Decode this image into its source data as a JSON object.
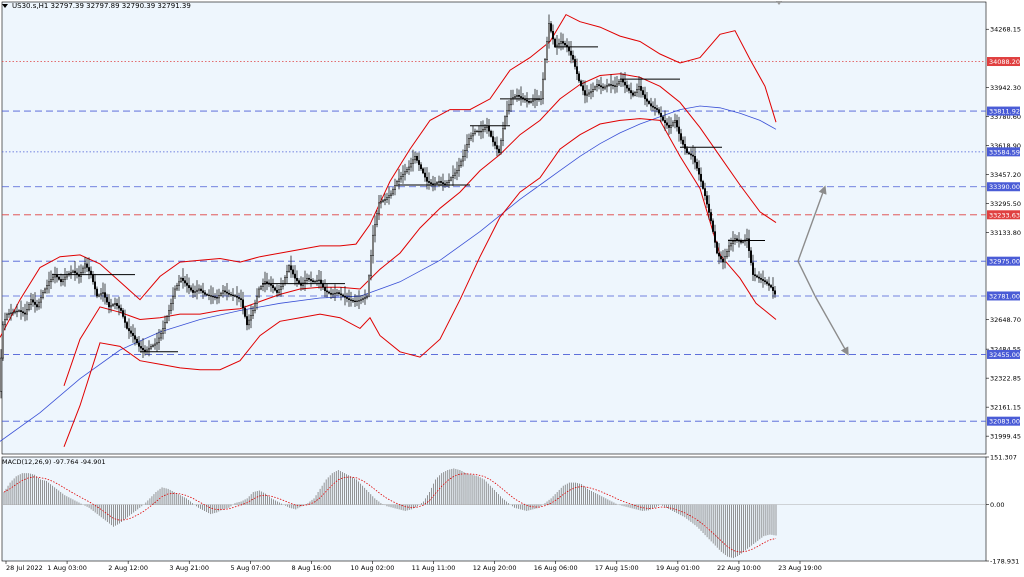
{
  "header": {
    "symbol_line": "US30.s,H1  32797.39 32797.89 32790.39 32791.39"
  },
  "macd": {
    "label": "MACD(12,26,9) -97.764 -94.901",
    "ylim": [
      -178.931,
      151.307
    ],
    "ticks": [
      "151.307",
      "0.00",
      "-178.931"
    ]
  },
  "colors": {
    "background": "#ffffff",
    "plot_bg": "#eef6fd",
    "bollinger": "#e00000",
    "ma_long": "#3a50d6",
    "blue_levels": "#4a5cd6",
    "red_levels": "#e04040",
    "candles": "#000000",
    "arrows": "#8c8c8c",
    "macd_hist": "#7a7a7a",
    "macd_signal": "#e00000"
  },
  "chart_data": {
    "type": "line",
    "title": "",
    "instrument": "US30.s",
    "timeframe": "H1",
    "ylim": [
      31900,
      34420
    ],
    "price_ticks": [
      "34268.15",
      "33942.30",
      "33780.60",
      "33618.90",
      "33457.20",
      "33295.50",
      "33133.80",
      "32648.70",
      "32484.55",
      "32322.85",
      "32161.15",
      "31999.45"
    ],
    "x_ticks": [
      "28 Jul 2022",
      "1 Aug 03:00",
      "2 Aug 12:00",
      "3 Aug 21:00",
      "5 Aug 07:00",
      "8 Aug 16:00",
      "10 Aug 02:00",
      "11 Aug 11:00",
      "12 Aug 20:00",
      "16 Aug 06:00",
      "17 Aug 15:00",
      "19 Aug 01:00",
      "22 Aug 10:00",
      "23 Aug 19:00"
    ],
    "levels": [
      {
        "value": 34088.2,
        "label": "34088.20",
        "color": "red",
        "style": "dotted"
      },
      {
        "value": 33811.92,
        "label": "33811.92",
        "color": "blue",
        "style": "dashed"
      },
      {
        "value": 33584.59,
        "label": "33584.59",
        "color": "blue",
        "style": "dotted"
      },
      {
        "value": 33390.0,
        "label": "33390.00",
        "color": "blue",
        "style": "dashed"
      },
      {
        "value": 33233.63,
        "label": "33233.63",
        "color": "red",
        "style": "dashed"
      },
      {
        "value": 32975.0,
        "label": "32975.00",
        "color": "blue",
        "style": "dashed"
      },
      {
        "value": 32781.0,
        "label": "32781.00",
        "color": "blue",
        "style": "dashed"
      },
      {
        "value": 32455.0,
        "label": "32455.00",
        "color": "blue",
        "style": "dashed"
      },
      {
        "value": 32083.0,
        "label": "32083.00",
        "color": "blue",
        "style": "dashed"
      }
    ],
    "price_path": [
      [
        0,
        32250
      ],
      [
        4,
        32620
      ],
      [
        8,
        32680
      ],
      [
        14,
        32690
      ],
      [
        20,
        32700
      ],
      [
        26,
        32680
      ],
      [
        32,
        32760
      ],
      [
        38,
        32720
      ],
      [
        44,
        32800
      ],
      [
        50,
        32860
      ],
      [
        56,
        32900
      ],
      [
        62,
        32860
      ],
      [
        68,
        32900
      ],
      [
        74,
        32920
      ],
      [
        80,
        32890
      ],
      [
        86,
        32960
      ],
      [
        92,
        32900
      ],
      [
        98,
        32780
      ],
      [
        104,
        32800
      ],
      [
        110,
        32720
      ],
      [
        116,
        32740
      ],
      [
        122,
        32700
      ],
      [
        128,
        32600
      ],
      [
        134,
        32560
      ],
      [
        140,
        32500
      ],
      [
        146,
        32470
      ],
      [
        152,
        32500
      ],
      [
        158,
        32520
      ],
      [
        164,
        32600
      ],
      [
        170,
        32700
      ],
      [
        176,
        32820
      ],
      [
        182,
        32880
      ],
      [
        188,
        32840
      ],
      [
        194,
        32800
      ],
      [
        200,
        32820
      ],
      [
        206,
        32790
      ],
      [
        212,
        32780
      ],
      [
        218,
        32770
      ],
      [
        224,
        32810
      ],
      [
        230,
        32790
      ],
      [
        236,
        32780
      ],
      [
        242,
        32760
      ],
      [
        248,
        32620
      ],
      [
        254,
        32700
      ],
      [
        260,
        32820
      ],
      [
        266,
        32860
      ],
      [
        272,
        32840
      ],
      [
        278,
        32800
      ],
      [
        284,
        32850
      ],
      [
        290,
        32950
      ],
      [
        296,
        32880
      ],
      [
        302,
        32840
      ],
      [
        308,
        32880
      ],
      [
        314,
        32860
      ],
      [
        320,
        32870
      ],
      [
        326,
        32810
      ],
      [
        332,
        32790
      ],
      [
        338,
        32800
      ],
      [
        344,
        32780
      ],
      [
        350,
        32760
      ],
      [
        356,
        32750
      ],
      [
        362,
        32760
      ],
      [
        368,
        32780
      ],
      [
        374,
        33120
      ],
      [
        380,
        33300
      ],
      [
        386,
        33320
      ],
      [
        392,
        33350
      ],
      [
        398,
        33420
      ],
      [
        404,
        33460
      ],
      [
        410,
        33500
      ],
      [
        416,
        33560
      ],
      [
        422,
        33490
      ],
      [
        428,
        33420
      ],
      [
        434,
        33400
      ],
      [
        440,
        33420
      ],
      [
        446,
        33400
      ],
      [
        452,
        33440
      ],
      [
        458,
        33480
      ],
      [
        464,
        33560
      ],
      [
        470,
        33660
      ],
      [
        476,
        33700
      ],
      [
        482,
        33700
      ],
      [
        488,
        33730
      ],
      [
        494,
        33640
      ],
      [
        500,
        33580
      ],
      [
        506,
        33780
      ],
      [
        512,
        33880
      ],
      [
        518,
        33900
      ],
      [
        524,
        33880
      ],
      [
        530,
        33860
      ],
      [
        536,
        33880
      ],
      [
        542,
        33880
      ],
      [
        546,
        34100
      ],
      [
        550,
        34300
      ],
      [
        556,
        34170
      ],
      [
        562,
        34200
      ],
      [
        568,
        34170
      ],
      [
        574,
        34100
      ],
      [
        580,
        33980
      ],
      [
        586,
        33900
      ],
      [
        592,
        33920
      ],
      [
        598,
        33960
      ],
      [
        604,
        33940
      ],
      [
        610,
        33960
      ],
      [
        616,
        33950
      ],
      [
        622,
        33990
      ],
      [
        628,
        33940
      ],
      [
        634,
        33900
      ],
      [
        640,
        33950
      ],
      [
        646,
        33880
      ],
      [
        652,
        33840
      ],
      [
        658,
        33820
      ],
      [
        664,
        33760
      ],
      [
        670,
        33720
      ],
      [
        676,
        33760
      ],
      [
        682,
        33650
      ],
      [
        688,
        33580
      ],
      [
        694,
        33560
      ],
      [
        700,
        33460
      ],
      [
        706,
        33340
      ],
      [
        712,
        33200
      ],
      [
        718,
        33020
      ],
      [
        724,
        32970
      ],
      [
        730,
        33060
      ],
      [
        736,
        33100
      ],
      [
        742,
        33080
      ],
      [
        748,
        33100
      ],
      [
        754,
        32900
      ],
      [
        760,
        32880
      ],
      [
        766,
        32860
      ],
      [
        772,
        32830
      ],
      [
        776,
        32791
      ]
    ],
    "bollinger_upper": [
      [
        0,
        32550
      ],
      [
        20,
        32760
      ],
      [
        40,
        32940
      ],
      [
        60,
        33000
      ],
      [
        80,
        33010
      ],
      [
        100,
        32960
      ],
      [
        120,
        32860
      ],
      [
        140,
        32760
      ],
      [
        160,
        32890
      ],
      [
        180,
        32970
      ],
      [
        200,
        32980
      ],
      [
        220,
        32990
      ],
      [
        240,
        32970
      ],
      [
        260,
        33000
      ],
      [
        280,
        33020
      ],
      [
        300,
        33040
      ],
      [
        320,
        33060
      ],
      [
        340,
        33060
      ],
      [
        356,
        33070
      ],
      [
        370,
        33180
      ],
      [
        390,
        33420
      ],
      [
        410,
        33600
      ],
      [
        430,
        33760
      ],
      [
        450,
        33820
      ],
      [
        470,
        33820
      ],
      [
        490,
        33880
      ],
      [
        510,
        34040
      ],
      [
        530,
        34110
      ],
      [
        550,
        34200
      ],
      [
        566,
        34350
      ],
      [
        580,
        34310
      ],
      [
        600,
        34280
      ],
      [
        620,
        34230
      ],
      [
        640,
        34200
      ],
      [
        660,
        34130
      ],
      [
        680,
        34080
      ],
      [
        700,
        34110
      ],
      [
        720,
        34240
      ],
      [
        735,
        34260
      ],
      [
        750,
        34100
      ],
      [
        765,
        33950
      ],
      [
        776,
        33750
      ]
    ],
    "bollinger_lower": [
      [
        64,
        31940
      ],
      [
        80,
        32170
      ],
      [
        100,
        32520
      ],
      [
        120,
        32500
      ],
      [
        140,
        32420
      ],
      [
        160,
        32400
      ],
      [
        180,
        32380
      ],
      [
        200,
        32370
      ],
      [
        220,
        32370
      ],
      [
        240,
        32420
      ],
      [
        260,
        32560
      ],
      [
        280,
        32640
      ],
      [
        300,
        32660
      ],
      [
        320,
        32680
      ],
      [
        340,
        32660
      ],
      [
        360,
        32600
      ],
      [
        370,
        32660
      ],
      [
        380,
        32560
      ],
      [
        400,
        32470
      ],
      [
        420,
        32440
      ],
      [
        440,
        32540
      ],
      [
        460,
        32760
      ],
      [
        480,
        33000
      ],
      [
        500,
        33220
      ],
      [
        520,
        33360
      ],
      [
        540,
        33440
      ],
      [
        560,
        33600
      ],
      [
        580,
        33680
      ],
      [
        600,
        33740
      ],
      [
        620,
        33760
      ],
      [
        640,
        33770
      ],
      [
        660,
        33760
      ],
      [
        680,
        33560
      ],
      [
        700,
        33380
      ],
      [
        720,
        33010
      ],
      [
        740,
        32880
      ],
      [
        756,
        32740
      ],
      [
        776,
        32650
      ]
    ],
    "bollinger_middle": [
      [
        64,
        32280
      ],
      [
        80,
        32540
      ],
      [
        100,
        32720
      ],
      [
        120,
        32690
      ],
      [
        140,
        32650
      ],
      [
        160,
        32660
      ],
      [
        180,
        32680
      ],
      [
        200,
        32680
      ],
      [
        220,
        32700
      ],
      [
        240,
        32710
      ],
      [
        260,
        32750
      ],
      [
        280,
        32790
      ],
      [
        300,
        32820
      ],
      [
        320,
        32830
      ],
      [
        340,
        32830
      ],
      [
        360,
        32820
      ],
      [
        380,
        32930
      ],
      [
        400,
        33020
      ],
      [
        420,
        33160
      ],
      [
        440,
        33270
      ],
      [
        460,
        33360
      ],
      [
        480,
        33480
      ],
      [
        500,
        33570
      ],
      [
        520,
        33680
      ],
      [
        540,
        33760
      ],
      [
        560,
        33880
      ],
      [
        580,
        33960
      ],
      [
        600,
        34010
      ],
      [
        620,
        34020
      ],
      [
        640,
        34000
      ],
      [
        660,
        33950
      ],
      [
        680,
        33860
      ],
      [
        700,
        33720
      ],
      [
        720,
        33560
      ],
      [
        740,
        33400
      ],
      [
        760,
        33250
      ],
      [
        776,
        33190
      ]
    ],
    "ma_long": [
      [
        0,
        31970
      ],
      [
        40,
        32130
      ],
      [
        80,
        32320
      ],
      [
        120,
        32480
      ],
      [
        160,
        32580
      ],
      [
        200,
        32650
      ],
      [
        240,
        32700
      ],
      [
        280,
        32740
      ],
      [
        320,
        32770
      ],
      [
        360,
        32780
      ],
      [
        400,
        32860
      ],
      [
        440,
        32980
      ],
      [
        460,
        33060
      ],
      [
        480,
        33140
      ],
      [
        500,
        33230
      ],
      [
        520,
        33320
      ],
      [
        540,
        33400
      ],
      [
        560,
        33480
      ],
      [
        580,
        33560
      ],
      [
        600,
        33630
      ],
      [
        620,
        33690
      ],
      [
        640,
        33740
      ],
      [
        660,
        33780
      ],
      [
        680,
        33820
      ],
      [
        700,
        33840
      ],
      [
        720,
        33830
      ],
      [
        740,
        33800
      ],
      [
        760,
        33760
      ],
      [
        776,
        33710
      ]
    ],
    "trendlines": [
      {
        "from": [
          52,
          32900
        ],
        "to": [
          135,
          32900
        ]
      },
      {
        "from": [
          262,
          32850
        ],
        "to": [
          345,
          32850
        ]
      },
      {
        "from": [
          398,
          33400
        ],
        "to": [
          470,
          33400
        ]
      },
      {
        "from": [
          470,
          33730
        ],
        "to": [
          510,
          33730
        ]
      },
      {
        "from": [
          555,
          34170
        ],
        "to": [
          598,
          34170
        ]
      },
      {
        "from": [
          620,
          33990
        ],
        "to": [
          680,
          33990
        ]
      },
      {
        "from": [
          680,
          33610
        ],
        "to": [
          722,
          33610
        ]
      },
      {
        "from": [
          728,
          33090
        ],
        "to": [
          765,
          33090
        ]
      },
      {
        "from": [
          140,
          32470
        ],
        "to": [
          178,
          32470
        ]
      },
      {
        "from": [
          500,
          33880
        ],
        "to": [
          540,
          33880
        ]
      }
    ],
    "forecast_arrows": [
      {
        "from": [
          798,
          32975
        ],
        "mid": [
          815,
          32781
        ],
        "to": [
          848,
          32455
        ]
      },
      {
        "from": [
          798,
          32975
        ],
        "to": [
          825,
          33390
        ]
      }
    ],
    "macd_histogram": [
      40,
      70,
      90,
      100,
      100,
      95,
      80,
      75,
      60,
      45,
      30,
      20,
      10,
      0,
      -10,
      -25,
      -40,
      -55,
      -70,
      -60,
      -45,
      -30,
      -15,
      0,
      20,
      40,
      55,
      50,
      40,
      30,
      20,
      5,
      -10,
      -20,
      -30,
      -25,
      -15,
      -10,
      5,
      10,
      20,
      40,
      45,
      35,
      20,
      10,
      0,
      -10,
      -15,
      -5,
      5,
      20,
      50,
      80,
      100,
      110,
      100,
      90,
      80,
      60,
      40,
      20,
      5,
      -5,
      -10,
      -15,
      -20,
      -15,
      -5,
      10,
      40,
      80,
      100,
      110,
      115,
      110,
      100,
      95,
      90,
      80,
      60,
      40,
      20,
      5,
      -10,
      -15,
      -20,
      -15,
      -10,
      5,
      20,
      40,
      60,
      70,
      70,
      65,
      50,
      40,
      30,
      20,
      10,
      0,
      -5,
      -10,
      -15,
      -20,
      -18,
      -10,
      0,
      -10,
      -20,
      -30,
      -40,
      -55,
      -70,
      -90,
      -110,
      -130,
      -150,
      -165,
      -170,
      -160,
      -145,
      -130,
      -115,
      -100,
      -95,
      -98
    ]
  }
}
